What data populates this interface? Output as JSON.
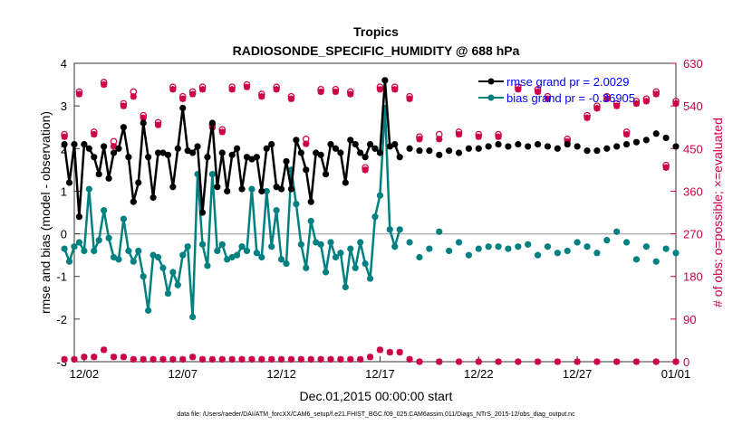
{
  "chart_data": {
    "type": "line",
    "title": "Tropics",
    "subtitle": "RADIOSONDE_SPECIFIC_HUMIDITY @ 688 hPa",
    "xlabel": "Dec.01,2015 00:00:00 start",
    "ylabel_left": "rmse and bias (model - observation)",
    "ylabel_right": "# of obs: o=possible; ×=evaluated",
    "ylim_left": [
      -3,
      4
    ],
    "ylim_right": [
      0,
      630
    ],
    "xlim_days": [
      0.5,
      31
    ],
    "left_ticks": [
      "-3",
      "-2",
      "-1",
      "0",
      "1",
      "2",
      "3",
      "4"
    ],
    "right_ticks": [
      "0",
      "90",
      "180",
      "270",
      "360",
      "450",
      "540",
      "630"
    ],
    "x_ticks": [
      {
        "day": 1,
        "label": "12/02"
      },
      {
        "day": 6,
        "label": "12/07"
      },
      {
        "day": 11,
        "label": "12/12"
      },
      {
        "day": 16,
        "label": "12/17"
      },
      {
        "day": 21,
        "label": "12/22"
      },
      {
        "day": 26,
        "label": "12/27"
      },
      {
        "day": 31,
        "label": "01/01"
      }
    ],
    "legend": [
      {
        "name": "rmse grand pr = 2.0029",
        "color": "#000000"
      },
      {
        "name": "bias grand pr = -0.36905",
        "color": "#008080"
      }
    ],
    "colors": {
      "rmse": "#000000",
      "bias": "#008080",
      "obs": "#cc0044",
      "zero_line": "#b0b0b0"
    },
    "footer": "data file: /Users/raeder/DAI/ATM_forcXX/CAM6_setup/f.e21.FHIST_BGC.f09_025.CAM6assim.011/Diags_NTrS_2015-12/obs_diag_output.nc",
    "rmse": [
      [
        0,
        2.1
      ],
      [
        0.25,
        1.2
      ],
      [
        0.5,
        2.1
      ],
      [
        0.75,
        0.4
      ],
      [
        1,
        2.1
      ],
      [
        1.25,
        2.0
      ],
      [
        1.5,
        1.8
      ],
      [
        1.75,
        1.4
      ],
      [
        2,
        2.05
      ],
      [
        2.25,
        1.3
      ],
      [
        2.5,
        1.9
      ],
      [
        2.75,
        2.0
      ],
      [
        3,
        2.5
      ],
      [
        3.25,
        1.8
      ],
      [
        3.5,
        0.75
      ],
      [
        3.75,
        1.2
      ],
      [
        4,
        2.6
      ],
      [
        4.25,
        1.8
      ],
      [
        4.5,
        0.85
      ],
      [
        4.75,
        1.9
      ],
      [
        5,
        1.9
      ],
      [
        5.25,
        1.85
      ],
      [
        5.5,
        1.1
      ],
      [
        5.75,
        2.0
      ],
      [
        6,
        2.95
      ],
      [
        6.25,
        1.95
      ],
      [
        6.5,
        1.9
      ],
      [
        6.75,
        2.05
      ],
      [
        7,
        0.5
      ],
      [
        7.25,
        1.8
      ],
      [
        7.5,
        2.6
      ],
      [
        7.75,
        1.1
      ],
      [
        8,
        1.9
      ],
      [
        8.25,
        1.0
      ],
      [
        8.5,
        1.85
      ],
      [
        8.75,
        2.0
      ],
      [
        9,
        1.05
      ],
      [
        9.25,
        1.8
      ],
      [
        9.5,
        1.75
      ],
      [
        9.75,
        1.8
      ],
      [
        10,
        1.0
      ],
      [
        10.25,
        2.0
      ],
      [
        10.5,
        2.1
      ],
      [
        10.75,
        1.1
      ],
      [
        11,
        1.05
      ],
      [
        11.25,
        1.7
      ],
      [
        11.5,
        1.05
      ],
      [
        11.75,
        2.2
      ],
      [
        12,
        1.9
      ],
      [
        12.25,
        1.5
      ],
      [
        12.5,
        0.75
      ],
      [
        12.75,
        1.9
      ],
      [
        13,
        1.85
      ],
      [
        13.25,
        1.4
      ],
      [
        13.5,
        2.1
      ],
      [
        13.75,
        2.0
      ],
      [
        14,
        1.9
      ],
      [
        14.25,
        1.2
      ],
      [
        14.5,
        2.2
      ],
      [
        14.75,
        2.1
      ],
      [
        15,
        1.9
      ],
      [
        15.25,
        1.8
      ],
      [
        15.5,
        2.1
      ],
      [
        15.75,
        2.0
      ],
      [
        16,
        1.9
      ],
      [
        16.25,
        3.6
      ],
      [
        16.5,
        2.05
      ],
      [
        16.75,
        2.1
      ],
      [
        17,
        1.8
      ]
    ],
    "rmse_tail": [
      [
        17.5,
        2.0
      ],
      [
        18,
        1.95
      ],
      [
        18.5,
        1.95
      ],
      [
        19,
        1.85
      ],
      [
        19.5,
        1.95
      ],
      [
        20,
        1.9
      ],
      [
        20.5,
        2.0
      ],
      [
        21,
        2.0
      ],
      [
        21.5,
        2.05
      ],
      [
        22,
        2.1
      ],
      [
        22.5,
        2.05
      ],
      [
        23,
        2.1
      ],
      [
        23.5,
        2.05
      ],
      [
        24,
        2.1
      ],
      [
        24.5,
        2.05
      ],
      [
        25,
        2.0
      ],
      [
        25.5,
        2.1
      ],
      [
        26,
        2.05
      ],
      [
        26.5,
        1.95
      ],
      [
        27,
        1.95
      ],
      [
        27.5,
        2.0
      ],
      [
        28,
        2.05
      ],
      [
        28.5,
        2.1
      ],
      [
        29,
        2.15
      ],
      [
        29.5,
        2.2
      ],
      [
        30,
        2.35
      ],
      [
        30.5,
        2.25
      ],
      [
        31,
        2.05
      ]
    ],
    "bias": [
      [
        0,
        -0.35
      ],
      [
        0.25,
        -0.65
      ],
      [
        0.5,
        -0.3
      ],
      [
        0.75,
        -0.2
      ],
      [
        1,
        -0.4
      ],
      [
        1.25,
        1.05
      ],
      [
        1.5,
        -0.4
      ],
      [
        1.75,
        -0.15
      ],
      [
        2,
        0.55
      ],
      [
        2.25,
        -0.1
      ],
      [
        2.5,
        -0.55
      ],
      [
        2.75,
        -0.6
      ],
      [
        3,
        0.35
      ],
      [
        3.25,
        -0.4
      ],
      [
        3.5,
        -0.65
      ],
      [
        3.75,
        -0.4
      ],
      [
        4,
        -1.0
      ],
      [
        4.25,
        -1.8
      ],
      [
        4.5,
        -0.5
      ],
      [
        4.75,
        -0.55
      ],
      [
        5,
        -0.8
      ],
      [
        5.25,
        -1.4
      ],
      [
        5.5,
        -0.9
      ],
      [
        5.75,
        -1.2
      ],
      [
        6,
        -0.5
      ],
      [
        6.25,
        -0.3
      ],
      [
        6.5,
        -1.95
      ],
      [
        6.75,
        1.4
      ],
      [
        7,
        -0.25
      ],
      [
        7.25,
        -0.75
      ],
      [
        7.5,
        1.4
      ],
      [
        7.75,
        -0.4
      ],
      [
        8,
        -0.25
      ],
      [
        8.25,
        -0.6
      ],
      [
        8.5,
        -0.55
      ],
      [
        8.75,
        -0.5
      ],
      [
        9,
        -0.3
      ],
      [
        9.25,
        -0.4
      ],
      [
        9.5,
        1.05
      ],
      [
        9.75,
        -0.45
      ],
      [
        10,
        -0.55
      ],
      [
        10.25,
        1.0
      ],
      [
        10.5,
        -0.3
      ],
      [
        10.75,
        0.55
      ],
      [
        11,
        -0.6
      ],
      [
        11.25,
        -0.7
      ],
      [
        11.5,
        1.5
      ],
      [
        11.75,
        0.7
      ],
      [
        12,
        -0.25
      ],
      [
        12.25,
        -0.8
      ],
      [
        12.5,
        0.3
      ],
      [
        12.75,
        -0.2
      ],
      [
        13,
        -0.25
      ],
      [
        13.25,
        -0.9
      ],
      [
        13.5,
        -0.2
      ],
      [
        13.75,
        -0.55
      ],
      [
        14,
        -0.45
      ],
      [
        14.25,
        -1.25
      ],
      [
        14.5,
        -0.35
      ],
      [
        14.75,
        -0.8
      ],
      [
        15,
        -0.2
      ],
      [
        15.25,
        -0.7
      ],
      [
        15.5,
        -1.05
      ],
      [
        15.75,
        0.4
      ],
      [
        16,
        0.9
      ],
      [
        16.25,
        2.95
      ],
      [
        16.5,
        0.1
      ],
      [
        16.75,
        -0.3
      ],
      [
        17,
        0.1
      ]
    ],
    "bias_tail": [
      [
        17.5,
        -0.2
      ],
      [
        18,
        -0.55
      ],
      [
        18.5,
        -0.35
      ],
      [
        19,
        0.05
      ],
      [
        19.5,
        -0.4
      ],
      [
        20,
        -0.2
      ],
      [
        20.5,
        -0.5
      ],
      [
        21,
        -0.35
      ],
      [
        21.5,
        -0.3
      ],
      [
        22,
        -0.3
      ],
      [
        22.5,
        -0.35
      ],
      [
        23,
        -0.3
      ],
      [
        23.5,
        -0.25
      ],
      [
        24,
        -0.5
      ],
      [
        24.5,
        -0.3
      ],
      [
        25,
        -0.45
      ],
      [
        25.5,
        -0.4
      ],
      [
        26,
        -0.2
      ],
      [
        26.5,
        -0.3
      ],
      [
        27,
        -0.45
      ],
      [
        27.5,
        -0.15
      ],
      [
        28,
        0.05
      ],
      [
        28.5,
        -0.2
      ],
      [
        29,
        -0.6
      ],
      [
        29.5,
        -0.3
      ],
      [
        30,
        -0.65
      ],
      [
        30.5,
        -0.35
      ],
      [
        31,
        -0.45
      ]
    ],
    "obs_possible": [
      [
        0,
        480
      ],
      [
        0.75,
        570
      ],
      [
        1.5,
        485
      ],
      [
        2,
        590
      ],
      [
        2.5,
        465
      ],
      [
        3,
        545
      ],
      [
        3.5,
        570
      ],
      [
        4,
        520
      ],
      [
        4.75,
        505
      ],
      [
        5.5,
        580
      ],
      [
        6,
        560
      ],
      [
        6.5,
        570
      ],
      [
        7,
        580
      ],
      [
        7.5,
        500
      ],
      [
        8,
        490
      ],
      [
        8.5,
        580
      ],
      [
        9.25,
        585
      ],
      [
        10,
        565
      ],
      [
        10.75,
        580
      ],
      [
        11.5,
        560
      ],
      [
        12.25,
        470
      ],
      [
        13,
        575
      ],
      [
        13.75,
        575
      ],
      [
        14.5,
        570
      ],
      [
        15.25,
        410
      ],
      [
        16,
        580
      ],
      [
        16.75,
        580
      ],
      [
        17.5,
        560
      ],
      [
        18,
        475
      ],
      [
        19,
        480
      ],
      [
        20,
        485
      ],
      [
        21,
        480
      ],
      [
        22,
        480
      ],
      [
        23,
        580
      ],
      [
        24,
        575
      ],
      [
        24.5,
        560
      ],
      [
        25.5,
        470
      ],
      [
        26.5,
        520
      ],
      [
        27,
        540
      ],
      [
        27.5,
        560
      ],
      [
        28,
        545
      ],
      [
        28.5,
        485
      ],
      [
        29,
        550
      ],
      [
        29.5,
        555
      ],
      [
        30,
        570
      ],
      [
        30.5,
        415
      ],
      [
        31,
        550
      ]
    ],
    "obs_evaluated": [
      [
        0,
        475
      ],
      [
        0.75,
        565
      ],
      [
        1.5,
        480
      ],
      [
        2,
        585
      ],
      [
        2.5,
        455
      ],
      [
        3,
        540
      ],
      [
        3.5,
        560
      ],
      [
        4,
        515
      ],
      [
        4.75,
        500
      ],
      [
        5.5,
        575
      ],
      [
        6,
        555
      ],
      [
        6.5,
        565
      ],
      [
        7,
        575
      ],
      [
        7.5,
        495
      ],
      [
        8,
        485
      ],
      [
        8.5,
        575
      ],
      [
        9.25,
        580
      ],
      [
        10,
        560
      ],
      [
        10.75,
        575
      ],
      [
        11.5,
        555
      ],
      [
        12.25,
        460
      ],
      [
        13,
        570
      ],
      [
        13.75,
        570
      ],
      [
        14.5,
        565
      ],
      [
        15.25,
        405
      ],
      [
        16,
        575
      ],
      [
        16.75,
        575
      ],
      [
        17.5,
        555
      ],
      [
        18,
        470
      ],
      [
        19,
        470
      ],
      [
        20,
        480
      ],
      [
        21,
        475
      ],
      [
        22,
        475
      ],
      [
        23,
        575
      ],
      [
        24,
        570
      ],
      [
        24.5,
        555
      ],
      [
        25.5,
        465
      ],
      [
        26.5,
        515
      ],
      [
        27,
        535
      ],
      [
        27.5,
        555
      ],
      [
        28,
        540
      ],
      [
        28.5,
        480
      ],
      [
        29,
        545
      ],
      [
        29.5,
        550
      ],
      [
        30,
        565
      ],
      [
        30.5,
        410
      ],
      [
        31,
        545
      ]
    ],
    "obs_bottom": [
      [
        0,
        5
      ],
      [
        0.5,
        5
      ],
      [
        1,
        10
      ],
      [
        1.5,
        10
      ],
      [
        2,
        25
      ],
      [
        2.5,
        10
      ],
      [
        3,
        10
      ],
      [
        3.5,
        5
      ],
      [
        4,
        5
      ],
      [
        4.5,
        5
      ],
      [
        5,
        5
      ],
      [
        5.5,
        5
      ],
      [
        6,
        5
      ],
      [
        6.5,
        10
      ],
      [
        7,
        5
      ],
      [
        7.5,
        5
      ],
      [
        8,
        5
      ],
      [
        8.5,
        5
      ],
      [
        9,
        5
      ],
      [
        9.5,
        5
      ],
      [
        10,
        5
      ],
      [
        10.5,
        5
      ],
      [
        11,
        5
      ],
      [
        11.5,
        5
      ],
      [
        12,
        5
      ],
      [
        12.5,
        5
      ],
      [
        13,
        5
      ],
      [
        13.5,
        5
      ],
      [
        14,
        5
      ],
      [
        14.5,
        5
      ],
      [
        15,
        5
      ],
      [
        15.5,
        10
      ],
      [
        16,
        25
      ],
      [
        16.5,
        20
      ],
      [
        17,
        20
      ],
      [
        17.5,
        5
      ],
      [
        18,
        0
      ],
      [
        19,
        0
      ],
      [
        20,
        0
      ],
      [
        21,
        0
      ],
      [
        22,
        0
      ],
      [
        23,
        0
      ],
      [
        24,
        0
      ],
      [
        25,
        0
      ],
      [
        26,
        0
      ],
      [
        27,
        0
      ],
      [
        28,
        0
      ],
      [
        29,
        0
      ],
      [
        30,
        0
      ],
      [
        31,
        0
      ]
    ]
  }
}
